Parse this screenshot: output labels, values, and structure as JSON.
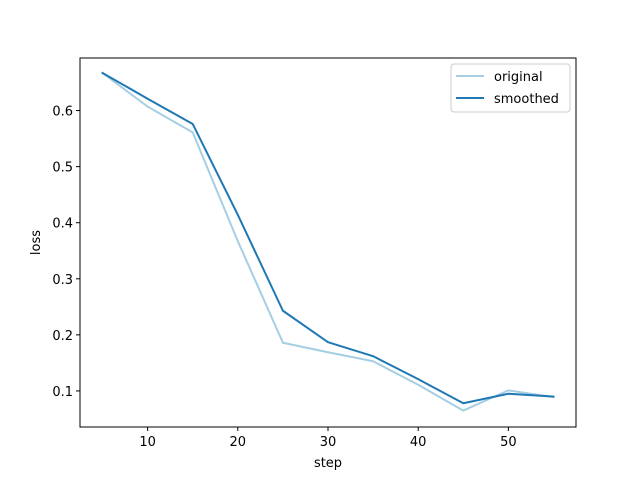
{
  "chart_data": {
    "type": "line",
    "title": "",
    "xlabel": "step",
    "ylabel": "loss",
    "xlim": [
      2.5,
      57.5
    ],
    "ylim": [
      0.0357,
      0.6937
    ],
    "xticks": [
      10,
      20,
      30,
      40,
      50
    ],
    "yticks": [
      0.1,
      0.2,
      0.3,
      0.4,
      0.5,
      0.6
    ],
    "xtick_labels": [
      "10",
      "20",
      "30",
      "40",
      "50"
    ],
    "ytick_labels": [
      "0.1",
      "0.2",
      "0.3",
      "0.4",
      "0.5",
      "0.6"
    ],
    "grid": false,
    "legend_position": "top-right",
    "x": [
      5,
      10,
      15,
      20,
      25,
      30,
      35,
      40,
      45,
      50,
      55
    ],
    "series": [
      {
        "name": "original",
        "color": "#a6cee3",
        "values": [
          0.667,
          0.607,
          0.561,
          0.367,
          0.186,
          0.169,
          0.153,
          0.111,
          0.065,
          0.101,
          0.089
        ]
      },
      {
        "name": "smoothed",
        "color": "#1f78b4",
        "values": [
          0.667,
          0.621,
          0.576,
          0.414,
          0.243,
          0.187,
          0.162,
          0.121,
          0.078,
          0.095,
          0.09
        ]
      }
    ]
  }
}
